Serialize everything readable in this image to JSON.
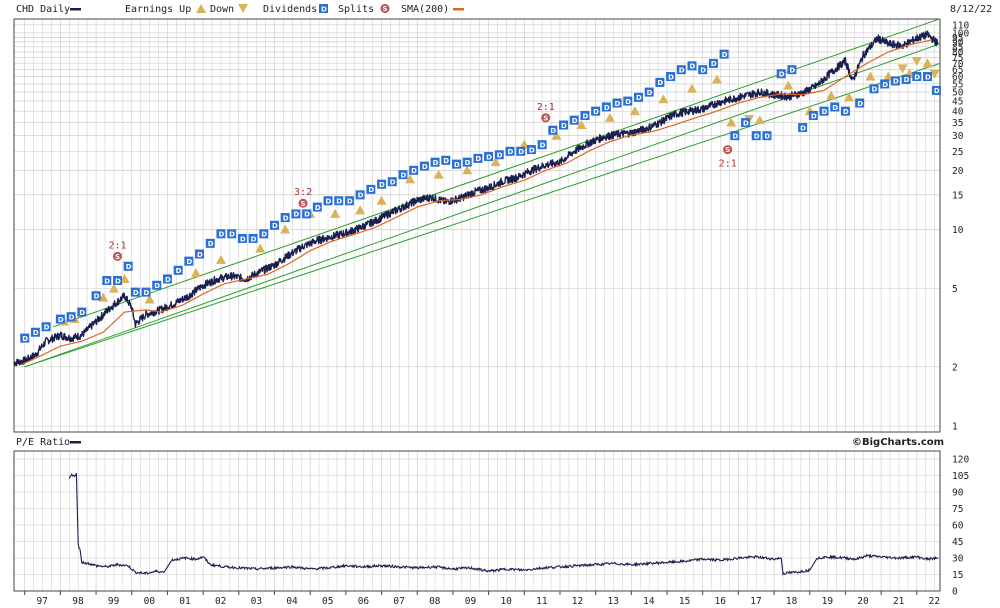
{
  "header": {
    "symbol_label": "CHD Daily",
    "earnings_up_label": "Earnings Up",
    "down_label": "Down",
    "dividends_label": "Dividends",
    "splits_label": "Splits",
    "sma_label": "SMA(200)",
    "date": "8/12/22"
  },
  "lower_panel": {
    "title": "P/E Ratio",
    "credit": "©BigCharts.com"
  },
  "colors": {
    "price": "#1a1f4e",
    "sma": "#e0651e",
    "channel": "#2e9e2e",
    "dividend": "#2a6fd6",
    "earnings": "#d9b25a",
    "split": "#c0504d",
    "pe": "#1a1f4e"
  },
  "icons": {
    "dividend_marker": "D-square-icon",
    "earnings_up_marker": "triangle-up-icon",
    "earnings_down_marker": "triangle-down-icon",
    "split_marker": "S-circle-icon"
  },
  "chart_data": [
    {
      "type": "line",
      "panel": "price",
      "scale": "log",
      "x_ticks": [
        "97",
        "98",
        "99",
        "00",
        "01",
        "02",
        "03",
        "04",
        "05",
        "06",
        "07",
        "08",
        "09",
        "10",
        "11",
        "12",
        "13",
        "14",
        "15",
        "16",
        "17",
        "18",
        "19",
        "20",
        "21",
        "22"
      ],
      "y_ticks": [
        "1",
        "2",
        "5",
        "10",
        "15",
        "20",
        "25",
        "30",
        "35",
        "40",
        "45",
        "50",
        "55",
        "60",
        "65",
        "70",
        "75",
        "80",
        "85",
        "90",
        "95",
        "100",
        "110"
      ],
      "ylim": [
        1,
        110
      ],
      "xlim": [
        1996.7,
        2022.65
      ],
      "series": [
        {
          "name": "CHD Daily",
          "x": [
            1996.7,
            1997.0,
            1997.3,
            1997.6,
            1998.0,
            1998.3,
            1998.6,
            1999.0,
            1999.4,
            1999.8,
            2000.0,
            2000.1,
            2000.4,
            2000.8,
            2001.2,
            2001.6,
            2002.0,
            2002.4,
            2002.8,
            2003.2,
            2003.6,
            2004.0,
            2004.4,
            2004.8,
            2005.2,
            2005.6,
            2006.0,
            2006.4,
            2006.8,
            2007.2,
            2007.6,
            2008.0,
            2008.4,
            2008.8,
            2009.2,
            2009.6,
            2010.0,
            2010.4,
            2010.8,
            2011.2,
            2011.6,
            2012.0,
            2012.4,
            2012.8,
            2013.2,
            2013.6,
            2014.0,
            2014.4,
            2014.8,
            2015.2,
            2015.6,
            2016.0,
            2016.4,
            2016.8,
            2017.2,
            2017.6,
            2018.0,
            2018.4,
            2018.8,
            2019.2,
            2019.6,
            2020.0,
            2020.2,
            2020.5,
            2020.9,
            2021.2,
            2021.6,
            2022.0,
            2022.3,
            2022.6
          ],
          "values": [
            2.1,
            2.15,
            2.3,
            2.7,
            2.9,
            2.8,
            2.9,
            3.4,
            4.0,
            4.6,
            4.0,
            3.3,
            3.7,
            3.9,
            4.2,
            4.6,
            5.2,
            5.6,
            5.8,
            5.6,
            6.1,
            6.6,
            7.4,
            8.2,
            8.8,
            9.2,
            9.6,
            10.2,
            11.0,
            12.0,
            13.0,
            14.1,
            14.6,
            13.8,
            14.4,
            15.5,
            16.3,
            17.6,
            18.4,
            20.0,
            21.3,
            22.0,
            25.0,
            27.5,
            29.5,
            30.5,
            31.0,
            32.5,
            35.0,
            38.5,
            40.0,
            41.0,
            44.0,
            46.0,
            48.0,
            50.0,
            48.5,
            47.5,
            49.5,
            54.0,
            63.0,
            72.0,
            57.0,
            77.0,
            94.0,
            88.0,
            86.0,
            94.0,
            98.0,
            88.0
          ]
        },
        {
          "name": "SMA(200)",
          "x": [
            1996.9,
            1997.5,
            1998.0,
            1998.6,
            1999.2,
            1999.8,
            2000.4,
            2000.8,
            2001.4,
            2002.0,
            2002.6,
            2003.2,
            2003.8,
            2004.4,
            2005.0,
            2005.6,
            2006.2,
            2006.8,
            2007.4,
            2008.0,
            2008.6,
            2009.2,
            2009.8,
            2010.4,
            2011.0,
            2011.6,
            2012.2,
            2012.8,
            2013.4,
            2014.0,
            2014.6,
            2015.2,
            2015.8,
            2016.4,
            2017.0,
            2017.6,
            2018.2,
            2018.8,
            2019.4,
            2020.0,
            2020.6,
            2021.2,
            2021.8,
            2022.4
          ],
          "values": [
            2.05,
            2.3,
            2.55,
            2.7,
            3.0,
            3.8,
            3.9,
            3.8,
            4.1,
            4.7,
            5.3,
            5.6,
            5.9,
            6.7,
            7.8,
            8.7,
            9.4,
            10.2,
            11.5,
            13.0,
            14.0,
            14.2,
            15.0,
            16.5,
            17.8,
            20.0,
            21.8,
            25.0,
            28.0,
            30.2,
            31.5,
            34.0,
            37.0,
            40.0,
            44.0,
            47.0,
            49.0,
            48.5,
            51.0,
            60.0,
            70.0,
            80.0,
            87.0,
            92.0
          ]
        }
      ],
      "channel_lines": [
        {
          "x": [
            1997.0,
            2022.65
          ],
          "values": [
            2.0,
            70.0
          ]
        },
        {
          "x": [
            1997.0,
            2022.65
          ],
          "values": [
            2.0,
            88.0
          ]
        },
        {
          "x": [
            1997.8,
            2022.65
          ],
          "values": [
            3.2,
            118.0
          ]
        }
      ],
      "splits": [
        {
          "x": 1999.6,
          "value": 7.3,
          "label": "2:1"
        },
        {
          "x": 2004.8,
          "value": 13.6,
          "label": "3:2"
        },
        {
          "x": 2011.6,
          "value": 37.0,
          "label": "2:1"
        },
        {
          "x": 2016.7,
          "value": 25.5,
          "label": "2:1"
        }
      ],
      "dividends": [
        {
          "x": 1997.0,
          "value": 2.8
        },
        {
          "x": 1997.3,
          "value": 3.0
        },
        {
          "x": 1997.6,
          "value": 3.2
        },
        {
          "x": 1998.0,
          "value": 3.5
        },
        {
          "x": 1998.3,
          "value": 3.6
        },
        {
          "x": 1998.6,
          "value": 3.8
        },
        {
          "x": 1999.0,
          "value": 4.6
        },
        {
          "x": 1999.3,
          "value": 5.5
        },
        {
          "x": 1999.6,
          "value": 5.5
        },
        {
          "x": 1999.9,
          "value": 6.5
        },
        {
          "x": 2000.1,
          "value": 4.8
        },
        {
          "x": 2000.4,
          "value": 4.8
        },
        {
          "x": 2000.7,
          "value": 5.2
        },
        {
          "x": 2001.0,
          "value": 5.6
        },
        {
          "x": 2001.3,
          "value": 6.2
        },
        {
          "x": 2001.6,
          "value": 6.9
        },
        {
          "x": 2001.9,
          "value": 7.5
        },
        {
          "x": 2002.2,
          "value": 8.5
        },
        {
          "x": 2002.5,
          "value": 9.5
        },
        {
          "x": 2002.8,
          "value": 9.5
        },
        {
          "x": 2003.1,
          "value": 9.0
        },
        {
          "x": 2003.4,
          "value": 9.0
        },
        {
          "x": 2003.7,
          "value": 9.5
        },
        {
          "x": 2004.0,
          "value": 10.5
        },
        {
          "x": 2004.3,
          "value": 11.5
        },
        {
          "x": 2004.6,
          "value": 12.0
        },
        {
          "x": 2004.9,
          "value": 12.0
        },
        {
          "x": 2005.2,
          "value": 13.0
        },
        {
          "x": 2005.5,
          "value": 14.0
        },
        {
          "x": 2005.8,
          "value": 14.0
        },
        {
          "x": 2006.1,
          "value": 14.0
        },
        {
          "x": 2006.4,
          "value": 15.0
        },
        {
          "x": 2006.7,
          "value": 16.0
        },
        {
          "x": 2007.0,
          "value": 17.0
        },
        {
          "x": 2007.3,
          "value": 17.5
        },
        {
          "x": 2007.6,
          "value": 19.0
        },
        {
          "x": 2007.9,
          "value": 20.0
        },
        {
          "x": 2008.2,
          "value": 21.0
        },
        {
          "x": 2008.5,
          "value": 22.0
        },
        {
          "x": 2008.8,
          "value": 22.5
        },
        {
          "x": 2009.1,
          "value": 21.5
        },
        {
          "x": 2009.4,
          "value": 22.0
        },
        {
          "x": 2009.7,
          "value": 23.0
        },
        {
          "x": 2010.0,
          "value": 23.5
        },
        {
          "x": 2010.3,
          "value": 24.0
        },
        {
          "x": 2010.6,
          "value": 25.0
        },
        {
          "x": 2010.9,
          "value": 25.0
        },
        {
          "x": 2011.2,
          "value": 25.5
        },
        {
          "x": 2011.5,
          "value": 27.0
        },
        {
          "x": 2011.8,
          "value": 32.0
        },
        {
          "x": 2012.1,
          "value": 34.0
        },
        {
          "x": 2012.4,
          "value": 36.0
        },
        {
          "x": 2012.7,
          "value": 38.0
        },
        {
          "x": 2013.0,
          "value": 40.0
        },
        {
          "x": 2013.3,
          "value": 42.0
        },
        {
          "x": 2013.6,
          "value": 44.0
        },
        {
          "x": 2013.9,
          "value": 45.0
        },
        {
          "x": 2014.2,
          "value": 47.0
        },
        {
          "x": 2014.5,
          "value": 50.0
        },
        {
          "x": 2014.8,
          "value": 56.0
        },
        {
          "x": 2015.1,
          "value": 60.0
        },
        {
          "x": 2015.4,
          "value": 65.0
        },
        {
          "x": 2015.7,
          "value": 68.0
        },
        {
          "x": 2016.0,
          "value": 65.0
        },
        {
          "x": 2016.3,
          "value": 70.0
        },
        {
          "x": 2016.6,
          "value": 78.0
        },
        {
          "x": 2016.9,
          "value": 30.0
        },
        {
          "x": 2017.2,
          "value": 35.0
        },
        {
          "x": 2017.5,
          "value": 30.0
        },
        {
          "x": 2017.8,
          "value": 30.0
        },
        {
          "x": 2018.2,
          "value": 62.0
        },
        {
          "x": 2018.5,
          "value": 65.0
        },
        {
          "x": 2018.8,
          "value": 33.0
        },
        {
          "x": 2019.1,
          "value": 38.0
        },
        {
          "x": 2019.4,
          "value": 40.0
        },
        {
          "x": 2019.7,
          "value": 42.0
        },
        {
          "x": 2020.0,
          "value": 40.0
        },
        {
          "x": 2020.4,
          "value": 44.0
        },
        {
          "x": 2020.8,
          "value": 52.0
        },
        {
          "x": 2021.1,
          "value": 55.0
        },
        {
          "x": 2021.4,
          "value": 57.0
        },
        {
          "x": 2021.7,
          "value": 58.0
        },
        {
          "x": 2022.0,
          "value": 60.0
        },
        {
          "x": 2022.3,
          "value": 60.0
        },
        {
          "x": 2022.55,
          "value": 51.0
        }
      ],
      "earnings_up": [
        {
          "x": 1998.1,
          "value": 3.4
        },
        {
          "x": 1998.4,
          "value": 3.5
        },
        {
          "x": 1999.2,
          "value": 4.5
        },
        {
          "x": 1999.5,
          "value": 5.0
        },
        {
          "x": 1999.8,
          "value": 5.6
        },
        {
          "x": 2000.5,
          "value": 4.4
        },
        {
          "x": 2001.8,
          "value": 6.0
        },
        {
          "x": 2002.5,
          "value": 7.0
        },
        {
          "x": 2003.6,
          "value": 8.0
        },
        {
          "x": 2004.3,
          "value": 10.0
        },
        {
          "x": 2005.0,
          "value": 12.0
        },
        {
          "x": 2005.7,
          "value": 12.0
        },
        {
          "x": 2006.4,
          "value": 12.5
        },
        {
          "x": 2007.0,
          "value": 14.0
        },
        {
          "x": 2007.8,
          "value": 18.0
        },
        {
          "x": 2008.6,
          "value": 19.0
        },
        {
          "x": 2009.4,
          "value": 20.0
        },
        {
          "x": 2010.2,
          "value": 22.0
        },
        {
          "x": 2011.0,
          "value": 27.0
        },
        {
          "x": 2011.9,
          "value": 30.0
        },
        {
          "x": 2012.6,
          "value": 34.0
        },
        {
          "x": 2013.4,
          "value": 37.0
        },
        {
          "x": 2014.1,
          "value": 40.0
        },
        {
          "x": 2014.9,
          "value": 46.0
        },
        {
          "x": 2015.7,
          "value": 52.0
        },
        {
          "x": 2016.4,
          "value": 58.0
        },
        {
          "x": 2016.8,
          "value": 35.0
        },
        {
          "x": 2017.6,
          "value": 36.0
        },
        {
          "x": 2018.4,
          "value": 54.0
        },
        {
          "x": 2019.0,
          "value": 40.0
        },
        {
          "x": 2019.6,
          "value": 48.0
        },
        {
          "x": 2020.1,
          "value": 47.0
        },
        {
          "x": 2020.7,
          "value": 60.0
        },
        {
          "x": 2021.2,
          "value": 60.0
        },
        {
          "x": 2021.8,
          "value": 62.0
        },
        {
          "x": 2022.3,
          "value": 70.0
        }
      ],
      "earnings_down": [
        {
          "x": 2017.3,
          "value": 36.5
        },
        {
          "x": 2021.6,
          "value": 66.0
        },
        {
          "x": 2022.0,
          "value": 72.0
        },
        {
          "x": 2022.5,
          "value": 62.0
        }
      ]
    },
    {
      "type": "line",
      "panel": "pe",
      "title": "P/E Ratio",
      "y_ticks": [
        "0",
        "15",
        "30",
        "45",
        "60",
        "75",
        "90",
        "105",
        "120"
      ],
      "ylim": [
        0,
        120
      ],
      "xlim": [
        1996.7,
        2022.65
      ],
      "series": [
        {
          "name": "P/E Ratio",
          "x": [
            1998.25,
            1998.3,
            1998.4,
            1998.45,
            1998.5,
            1998.55,
            1998.6,
            1998.8,
            1999.0,
            1999.3,
            1999.6,
            1999.9,
            2000.1,
            2000.4,
            2000.7,
            2000.9,
            2001.1,
            2001.5,
            2001.8,
            2002.0,
            2002.2,
            2002.6,
            2003.0,
            2003.5,
            2004.0,
            2004.5,
            2005.0,
            2005.5,
            2006.0,
            2006.5,
            2007.0,
            2007.5,
            2008.0,
            2008.5,
            2009.0,
            2009.5,
            2010.0,
            2010.5,
            2011.0,
            2011.5,
            2012.0,
            2012.5,
            2013.0,
            2013.5,
            2014.0,
            2014.5,
            2015.0,
            2015.5,
            2016.0,
            2016.5,
            2017.0,
            2017.5,
            2018.0,
            2018.2,
            2018.25,
            2018.6,
            2019.0,
            2019.2,
            2019.5,
            2020.0,
            2020.3,
            2020.6,
            2021.0,
            2021.5,
            2022.0,
            2022.3,
            2022.6
          ],
          "values": [
            103,
            106,
            104,
            107,
            42,
            38,
            26,
            25,
            23,
            22,
            24,
            23,
            17,
            16,
            18,
            17,
            28,
            30,
            29,
            31,
            24,
            22,
            21,
            20,
            21,
            22,
            20,
            21,
            23,
            22,
            23,
            22,
            21,
            22,
            20,
            21,
            18,
            20,
            19,
            21,
            22,
            23,
            24,
            25,
            24,
            25,
            26,
            27,
            29,
            28,
            30,
            31,
            29,
            30,
            16,
            17,
            19,
            30,
            31,
            30,
            29,
            32,
            31,
            30,
            31,
            29,
            30
          ]
        }
      ]
    }
  ]
}
